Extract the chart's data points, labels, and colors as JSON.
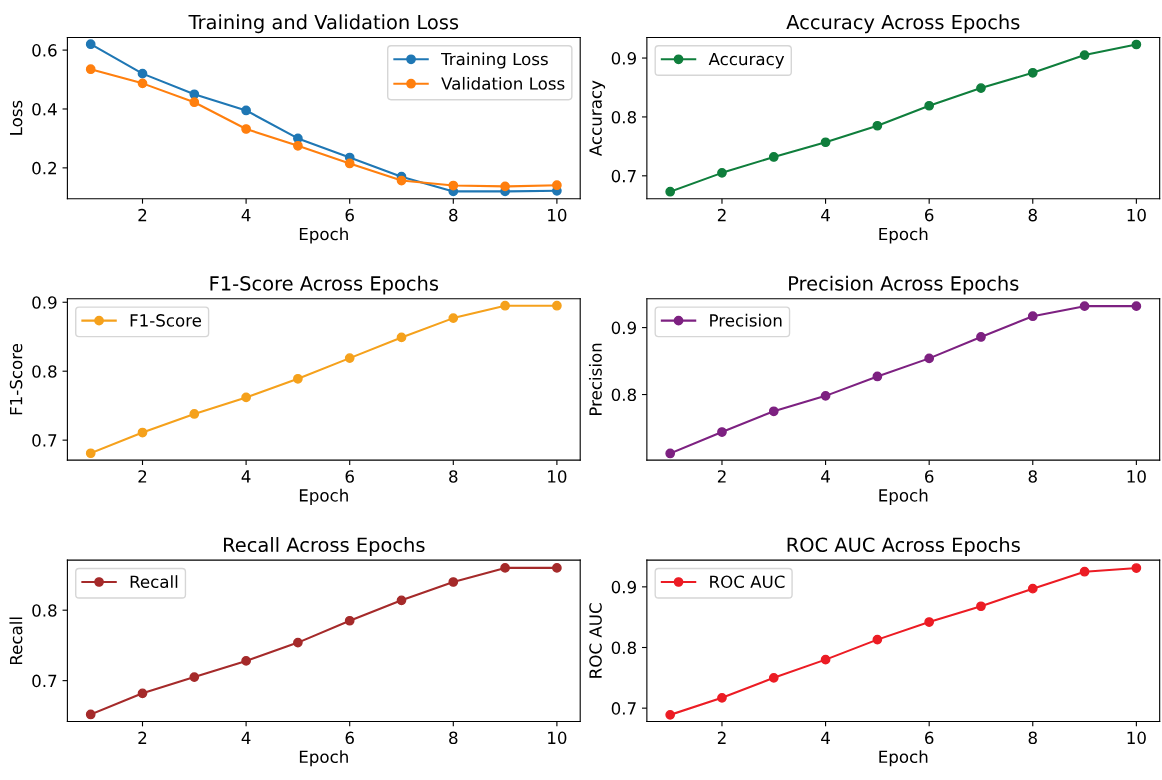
{
  "chart_data": [
    {
      "type": "line",
      "title": "Training and Validation Loss",
      "xlabel": "Epoch",
      "ylabel": "Loss",
      "x": [
        1,
        2,
        3,
        4,
        5,
        6,
        7,
        8,
        9,
        10
      ],
      "xlim": [
        0.55,
        10.45
      ],
      "xticks": [
        2,
        4,
        6,
        8,
        10
      ],
      "ylim": [
        0.095,
        0.643
      ],
      "yticks": [
        0.2,
        0.4,
        0.6
      ],
      "marker": "circle",
      "legend": "top right",
      "grid": false,
      "series": [
        {
          "name": "Training Loss",
          "color": "#1f77b4",
          "values": [
            0.62,
            0.52,
            0.45,
            0.395,
            0.3,
            0.235,
            0.17,
            0.12,
            0.12,
            0.122
          ]
        },
        {
          "name": "Validation Loss",
          "color": "#ff7f0e",
          "values": [
            0.535,
            0.487,
            0.423,
            0.332,
            0.275,
            0.215,
            0.157,
            0.14,
            0.137,
            0.141
          ]
        }
      ]
    },
    {
      "type": "line",
      "title": "Accuracy Across Epochs",
      "xlabel": "Epoch",
      "ylabel": "Accuracy",
      "x": [
        1,
        2,
        3,
        4,
        5,
        6,
        7,
        8,
        9,
        10
      ],
      "xlim": [
        0.55,
        10.45
      ],
      "xticks": [
        2,
        4,
        6,
        8,
        10
      ],
      "ylim": [
        0.661,
        0.935
      ],
      "yticks": [
        0.7,
        0.8,
        0.9
      ],
      "marker": "circle",
      "legend": "top left",
      "grid": false,
      "series": [
        {
          "name": "Accuracy",
          "color": "#0f7e3c",
          "values": [
            0.673,
            0.705,
            0.732,
            0.757,
            0.785,
            0.819,
            0.849,
            0.875,
            0.905,
            0.923
          ]
        }
      ]
    },
    {
      "type": "line",
      "title": "F1-Score Across Epochs",
      "xlabel": "Epoch",
      "ylabel": "F1-Score",
      "x": [
        1,
        2,
        3,
        4,
        5,
        6,
        7,
        8,
        9,
        10
      ],
      "xlim": [
        0.55,
        10.45
      ],
      "xticks": [
        2,
        4,
        6,
        8,
        10
      ],
      "ylim": [
        0.671,
        0.905
      ],
      "yticks": [
        0.7,
        0.8,
        0.9
      ],
      "marker": "circle",
      "legend": "top left",
      "grid": false,
      "series": [
        {
          "name": "F1-Score",
          "color": "#f5a11c",
          "values": [
            0.681,
            0.711,
            0.738,
            0.762,
            0.789,
            0.819,
            0.849,
            0.877,
            0.895,
            0.895
          ]
        }
      ]
    },
    {
      "type": "line",
      "title": "Precision Across Epochs",
      "xlabel": "Epoch",
      "ylabel": "Precision",
      "x": [
        1,
        2,
        3,
        4,
        5,
        6,
        7,
        8,
        9,
        10
      ],
      "xlim": [
        0.55,
        10.45
      ],
      "xticks": [
        2,
        4,
        6,
        8,
        10
      ],
      "ylim": [
        0.702,
        0.943
      ],
      "yticks": [
        0.8,
        0.9
      ],
      "marker": "circle",
      "legend": "top left",
      "grid": false,
      "series": [
        {
          "name": "Precision",
          "color": "#7d2181",
          "values": [
            0.712,
            0.744,
            0.775,
            0.798,
            0.827,
            0.854,
            0.886,
            0.917,
            0.932,
            0.932
          ]
        }
      ]
    },
    {
      "type": "line",
      "title": "Recall Across Epochs",
      "xlabel": "Epoch",
      "ylabel": "Recall",
      "x": [
        1,
        2,
        3,
        4,
        5,
        6,
        7,
        8,
        9,
        10
      ],
      "xlim": [
        0.55,
        10.45
      ],
      "xticks": [
        2,
        4,
        6,
        8,
        10
      ],
      "ylim": [
        0.642,
        0.871
      ],
      "yticks": [
        0.7,
        0.8
      ],
      "marker": "circle",
      "legend": "top left",
      "grid": false,
      "series": [
        {
          "name": "Recall",
          "color": "#a52a2a",
          "values": [
            0.652,
            0.682,
            0.705,
            0.728,
            0.754,
            0.785,
            0.814,
            0.84,
            0.86,
            0.86
          ]
        }
      ]
    },
    {
      "type": "line",
      "title": "ROC AUC Across Epochs",
      "xlabel": "Epoch",
      "ylabel": "ROC AUC",
      "x": [
        1,
        2,
        3,
        4,
        5,
        6,
        7,
        8,
        9,
        10
      ],
      "xlim": [
        0.55,
        10.45
      ],
      "xticks": [
        2,
        4,
        6,
        8,
        10
      ],
      "ylim": [
        0.678,
        0.944
      ],
      "yticks": [
        0.7,
        0.8,
        0.9
      ],
      "marker": "circle",
      "legend": "top left",
      "grid": false,
      "series": [
        {
          "name": "ROC AUC",
          "color": "#ec1c24",
          "values": [
            0.689,
            0.717,
            0.75,
            0.78,
            0.813,
            0.842,
            0.868,
            0.897,
            0.925,
            0.931
          ]
        }
      ]
    }
  ]
}
